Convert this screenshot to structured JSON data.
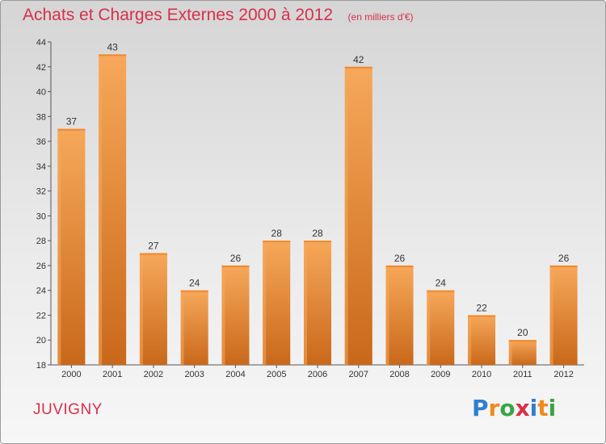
{
  "chart_data": {
    "type": "bar",
    "title": "Achats et Charges Externes 2000 à 2012",
    "subtitle": "(en milliers d'€)",
    "categories": [
      "2000",
      "2001",
      "2002",
      "2003",
      "2004",
      "2005",
      "2006",
      "2007",
      "2008",
      "2009",
      "2010",
      "2011",
      "2012"
    ],
    "values": [
      37,
      43,
      27,
      24,
      26,
      28,
      28,
      42,
      26,
      24,
      22,
      20,
      26
    ],
    "ylim": [
      18,
      44
    ],
    "yticks": [
      18,
      20,
      22,
      24,
      26,
      28,
      30,
      32,
      34,
      36,
      38,
      40,
      42,
      44
    ],
    "grid": false,
    "bar_color": "#f0892a",
    "bar_highlight": "#f7a85a",
    "bar_shadow": "#c9681a"
  },
  "place": "JUVIGNY",
  "logo": {
    "letters": [
      "P",
      "r",
      "o",
      "x",
      "i",
      "t",
      "i"
    ],
    "colors": [
      "#2f7fd0",
      "#f08a1c",
      "#3aa545",
      "#d8304a",
      "#2f7fd0",
      "#f08a1c",
      "#3aa545"
    ]
  }
}
